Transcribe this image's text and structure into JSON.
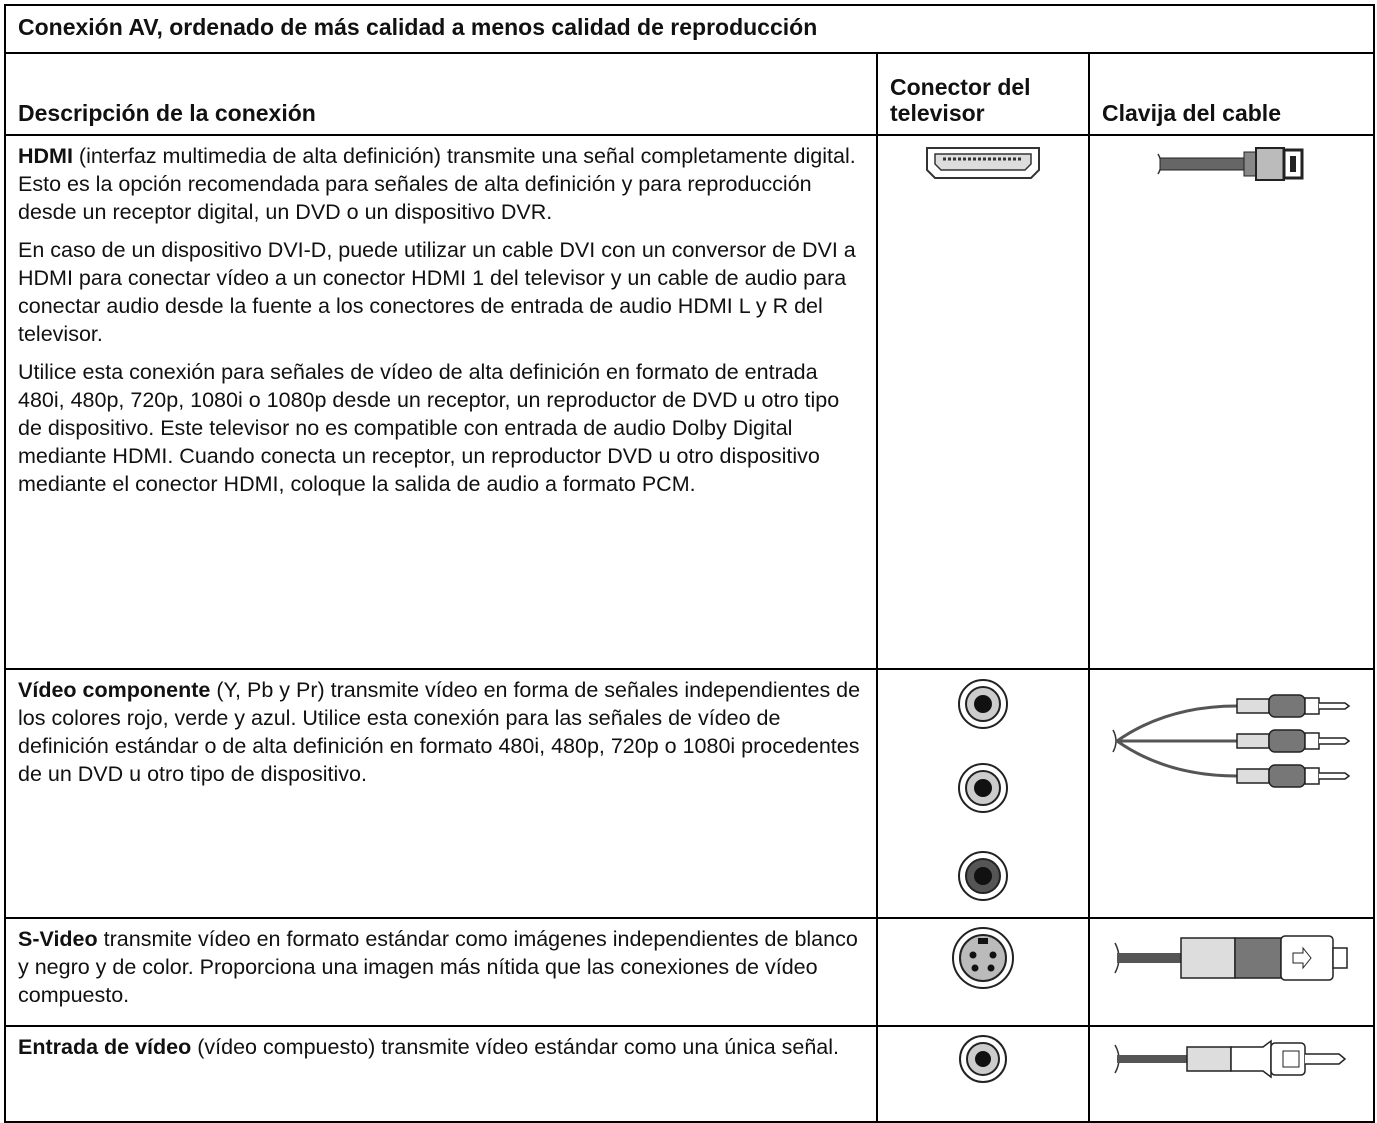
{
  "table": {
    "title": "Conexión AV, ordenado de más calidad a menos calidad de reproducción",
    "headers": [
      "Descripción de la conexión",
      "Conector del televisor",
      "Clavija del cable"
    ],
    "rows": [
      {
        "term": "HDMI",
        "paragraphs": [
          "(interfaz multimedia de alta definición) transmite una señal completamente digital. Esto es la opción recomendada para señales de alta definición y para reproducción desde un receptor digital, un DVD o un dispositivo DVR.",
          "En caso de un dispositivo DVI-D, puede utilizar un cable DVI con un conversor de DVI a HDMI para conectar vídeo a un conector HDMI 1 del televisor y un cable de audio para conectar audio desde la fuente a los conectores de entrada de audio HDMI L y R del televisor.",
          "Utilice esta conexión para señales de vídeo de alta definición en formato de entrada 480i, 480p, 720p, 1080i o 1080p desde un receptor, un reproductor de DVD u otro tipo de dispositivo. Este televisor no es compatible con entrada de audio Dolby Digital mediante HDMI. Cuando conecta un receptor, un reproductor DVD u otro dispositivo mediante el conector HDMI, coloque la salida de audio a formato PCM."
        ]
      },
      {
        "term": "Vídeo componente",
        "paragraphs": [
          "(Y, Pb y Pr) transmite vídeo en forma de señales independientes de los colores rojo, verde y azul. Utilice esta conexión para las señales de vídeo de definición estándar o de alta definición en formato 480i, 480p, 720p o 1080i procedentes de un DVD u otro tipo de dispositivo."
        ]
      },
      {
        "term": "S-Video",
        "paragraphs": [
          "transmite vídeo en formato estándar como imágenes independientes de blanco y negro y de color. Proporciona una imagen más nítida que las conexiones de vídeo compuesto."
        ]
      },
      {
        "term": "Entrada de vídeo",
        "paragraphs": [
          "(vídeo compuesto) transmite vídeo estándar como una única señal."
        ]
      }
    ]
  }
}
